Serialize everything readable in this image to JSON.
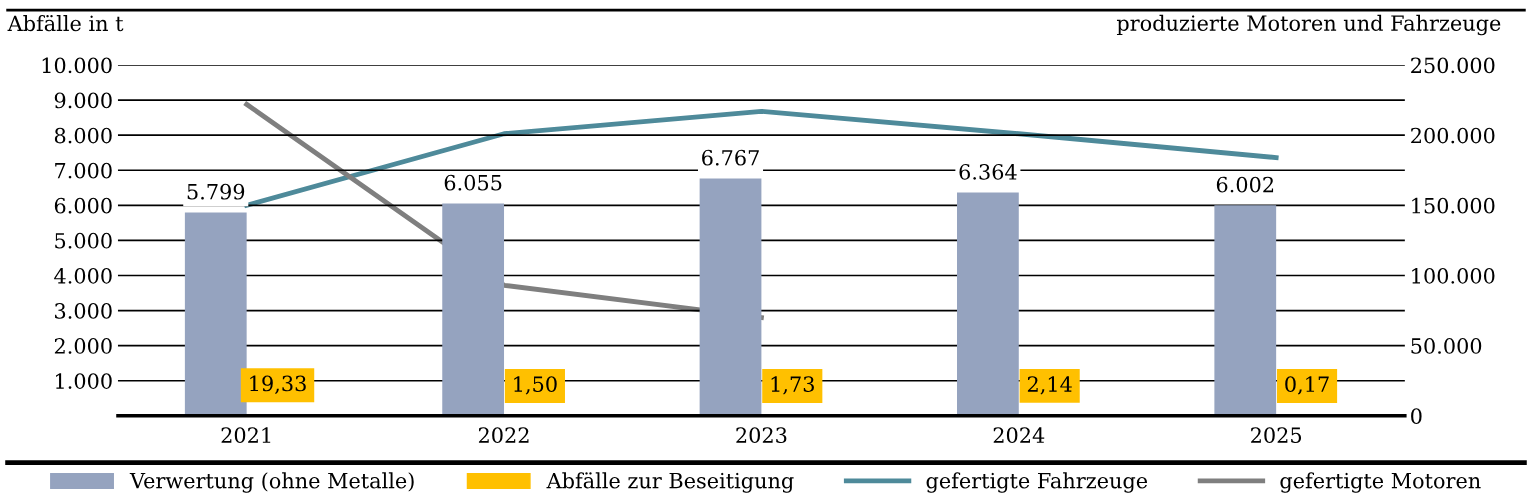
{
  "chart_data": {
    "type": "bar",
    "ylabel": "Abfälle in t",
    "y2label": "produzierte Motoren und Fahrzeuge",
    "categories": [
      "2021",
      "2022",
      "2023",
      "2024",
      "2025"
    ],
    "series": [
      {
        "name": "Verwertung (ohne Metalle)",
        "color": "#95a3bf",
        "values": [
          5799,
          6055,
          6767,
          6364,
          6002
        ],
        "value_labels": [
          "5.799",
          "6.055",
          "6.767",
          "6.364",
          "6.002"
        ]
      },
      {
        "name": "Abfälle zur Beseitigung",
        "color": "#ffc000",
        "values": [
          19.33,
          1.5,
          1.73,
          2.14,
          0.17
        ],
        "value_labels": [
          "19,33",
          "1,50",
          "1,73",
          "2,14",
          "0,17"
        ]
      },
      {
        "name": "gefertigte Fahrzeuge",
        "type": "line",
        "axis": "y2",
        "color": "#4e8a9a",
        "values": [
          150000,
          201000,
          217000,
          201000,
          184000
        ]
      },
      {
        "name": "gefertigte Motoren",
        "type": "line",
        "axis": "y2",
        "color": "#7f7f7f",
        "values": [
          222000,
          93000,
          70000,
          null,
          null
        ]
      }
    ],
    "ylim": [
      0,
      10000
    ],
    "yticks": [
      {
        "value": 1000,
        "label": "1.000"
      },
      {
        "value": 2000,
        "label": "2.000"
      },
      {
        "value": 3000,
        "label": "3.000"
      },
      {
        "value": 4000,
        "label": "4.000"
      },
      {
        "value": 5000,
        "label": "5.000"
      },
      {
        "value": 6000,
        "label": "6.000"
      },
      {
        "value": 7000,
        "label": "7.000"
      },
      {
        "value": 8000,
        "label": "8.000"
      },
      {
        "value": 9000,
        "label": "9.000"
      },
      {
        "value": 10000,
        "label": "10.000"
      }
    ],
    "y2lim": [
      0,
      250000
    ],
    "y2ticks": [
      0,
      {
        "value": 50000,
        "label": "50.000"
      },
      {
        "value": 100000,
        "label": "100.000"
      },
      {
        "value": 150000,
        "label": "150.000"
      },
      {
        "value": 200000,
        "label": "200.000"
      },
      {
        "value": 250000,
        "label": "250.000"
      }
    ],
    "grid": "y",
    "legend": "bottom"
  }
}
